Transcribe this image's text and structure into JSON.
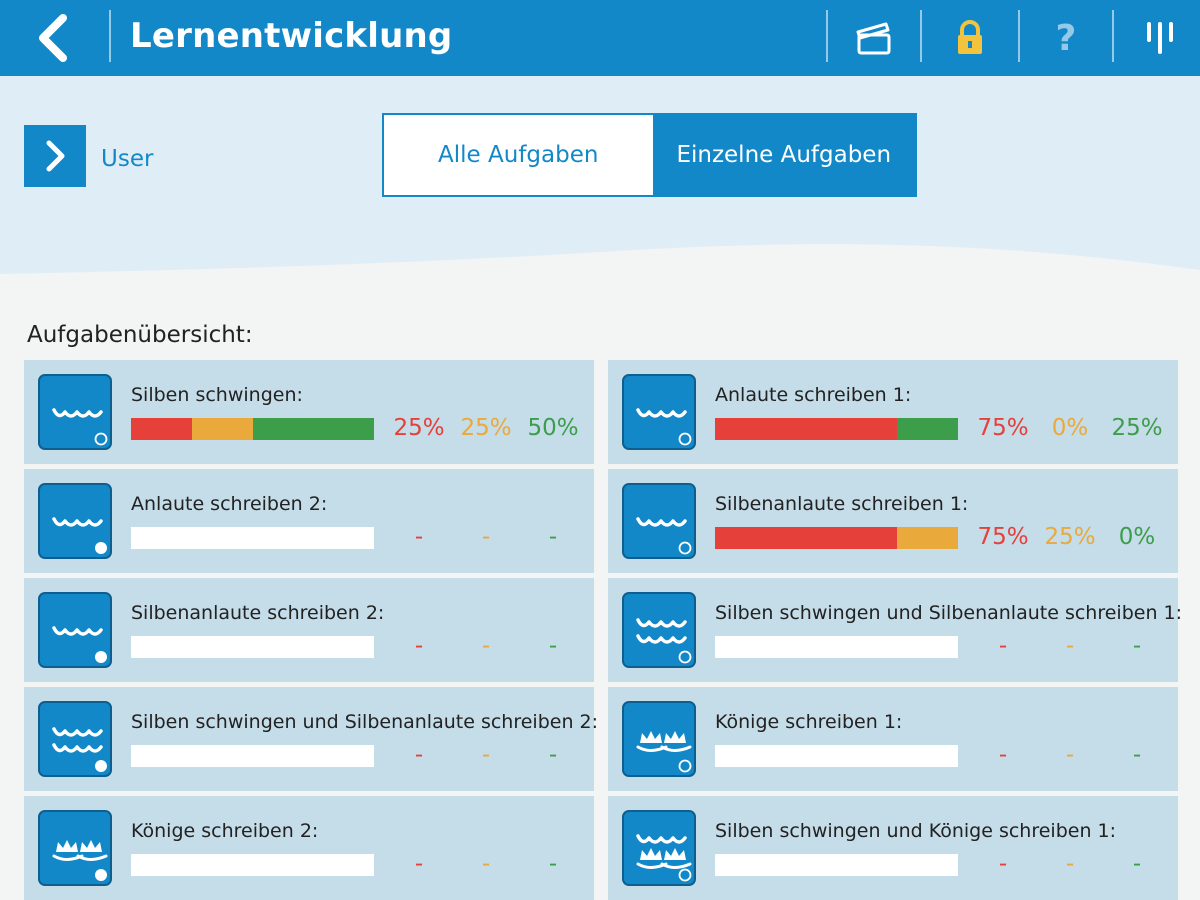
{
  "app": {
    "title": "Lernentwicklung"
  },
  "toolbar": {
    "help_label": "?"
  },
  "user": {
    "label": "User"
  },
  "tabs": [
    {
      "label": "Alle Aufgaben",
      "active": false
    },
    {
      "label": "Einzelne Aufgaben",
      "active": true
    }
  ],
  "section": {
    "title": "Aufgabenübersicht:"
  },
  "colors": {
    "primary": "#1288c9",
    "red": "#e5403a",
    "orange": "#eaa93b",
    "green": "#3c9d4b",
    "lock": "#f2c33d"
  },
  "tasks": [
    {
      "name": "Silben schwingen:",
      "icon": "waves-2-open-circle-icon",
      "red": 25,
      "orange": 25,
      "green": 50,
      "red_label": "25%",
      "orange_label": "25%",
      "green_label": "50%"
    },
    {
      "name": "Anlaute schreiben 1:",
      "icon": "waves-2-open-circle-icon",
      "red": 75,
      "orange": 0,
      "green": 25,
      "red_label": "75%",
      "orange_label": "0%",
      "green_label": "25%"
    },
    {
      "name": "Anlaute schreiben 2:",
      "icon": "waves-2-filled-circle-icon",
      "red": 0,
      "orange": 0,
      "green": 0,
      "red_label": "-",
      "orange_label": "-",
      "green_label": "-"
    },
    {
      "name": "Silbenanlaute schreiben 1:",
      "icon": "waves-2-open-circle-icon",
      "red": 75,
      "orange": 25,
      "green": 0,
      "red_label": "75%",
      "orange_label": "25%",
      "green_label": "0%"
    },
    {
      "name": "Silbenanlaute schreiben 2:",
      "icon": "waves-2-filled-circle-icon",
      "red": 0,
      "orange": 0,
      "green": 0,
      "red_label": "-",
      "orange_label": "-",
      "green_label": "-"
    },
    {
      "name": "Silben schwingen und Silbenanlaute schreiben 1:",
      "icon": "waves-4-open-circle-icon",
      "red": 0,
      "orange": 0,
      "green": 0,
      "red_label": "-",
      "orange_label": "-",
      "green_label": "-"
    },
    {
      "name": "Silben schwingen und Silbenanlaute schreiben 2:",
      "icon": "waves-4-filled-circle-icon",
      "red": 0,
      "orange": 0,
      "green": 0,
      "red_label": "-",
      "orange_label": "-",
      "green_label": "-"
    },
    {
      "name": "Könige schreiben 1:",
      "icon": "crowns-open-circle-icon",
      "red": 0,
      "orange": 0,
      "green": 0,
      "red_label": "-",
      "orange_label": "-",
      "green_label": "-"
    },
    {
      "name": "Könige schreiben 2:",
      "icon": "crowns-filled-circle-icon",
      "red": 0,
      "orange": 0,
      "green": 0,
      "red_label": "-",
      "orange_label": "-",
      "green_label": "-"
    },
    {
      "name": "Silben schwingen und Könige schreiben 1:",
      "icon": "waves-crowns-open-circle-icon",
      "red": 0,
      "orange": 0,
      "green": 0,
      "red_label": "-",
      "orange_label": "-",
      "green_label": "-"
    }
  ]
}
